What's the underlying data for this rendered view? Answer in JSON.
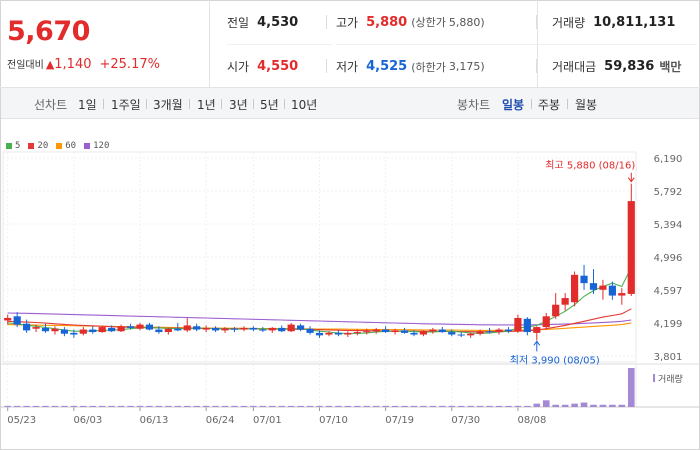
{
  "price": {
    "current": "5,670",
    "change_label": "전일대비",
    "change_triangle": "▲",
    "change_amount": "1,140",
    "change_percent": "+25.17%"
  },
  "stats": {
    "prev_close_label": "전일",
    "prev_close": "4,530",
    "high_label": "고가",
    "high": "5,880",
    "upper_limit_label": "(상한가",
    "upper_limit": "5,880)",
    "volume_label": "거래량",
    "volume": "10,811,131",
    "open_label": "시가",
    "open": "4,550",
    "low_label": "저가",
    "low": "4,525",
    "lower_limit_label": "(하한가",
    "lower_limit": "3,175)",
    "trade_value_label": "거래대금",
    "trade_value": "59,836",
    "trade_value_unit": "백만"
  },
  "period_bar": {
    "line_label": "선차트",
    "line_periods": [
      "1일",
      "1주일",
      "3개월",
      "1년",
      "3년",
      "5년",
      "10년"
    ],
    "candle_label": "봉차트",
    "candle_periods": [
      "일봉",
      "주봉",
      "월봉"
    ],
    "candle_selected": "일봉"
  },
  "colors": {
    "up": "#e22b2b",
    "down": "#1764d6",
    "ma5": "#4caf50",
    "ma20": "#e53935",
    "ma60": "#ff9800",
    "ma120": "#9c5fd0",
    "volume": "#a48ad4"
  },
  "chart_data": {
    "type": "candlestick",
    "legend": [
      "5",
      "20",
      "60",
      "120"
    ],
    "y_ticks": [
      "6,190",
      "5,792",
      "5,394",
      "4,996",
      "4,597",
      "4,199",
      "3,801"
    ],
    "ylim": [
      3801,
      6190
    ],
    "x_ticks": [
      "05/23",
      "06/03",
      "06/13",
      "06/24",
      "07/01",
      "07/10",
      "07/19",
      "07/30",
      "08/08"
    ],
    "high_annotation": "최고 5,880 (08/16)",
    "low_annotation": "최저 3,990 (08/05)",
    "volume_legend": "거래량",
    "candles": [
      {
        "o": 4230,
        "h": 4300,
        "l": 4180,
        "c": 4260
      },
      {
        "o": 4280,
        "h": 4330,
        "l": 4150,
        "c": 4180
      },
      {
        "o": 4190,
        "h": 4240,
        "l": 4080,
        "c": 4110
      },
      {
        "o": 4130,
        "h": 4180,
        "l": 4090,
        "c": 4150
      },
      {
        "o": 4140,
        "h": 4190,
        "l": 4080,
        "c": 4100
      },
      {
        "o": 4100,
        "h": 4160,
        "l": 4060,
        "c": 4130
      },
      {
        "o": 4120,
        "h": 4150,
        "l": 4040,
        "c": 4070
      },
      {
        "o": 4080,
        "h": 4120,
        "l": 4020,
        "c": 4060
      },
      {
        "o": 4070,
        "h": 4150,
        "l": 4050,
        "c": 4120
      },
      {
        "o": 4120,
        "h": 4160,
        "l": 4070,
        "c": 4090
      },
      {
        "o": 4090,
        "h": 4160,
        "l": 4080,
        "c": 4150
      },
      {
        "o": 4140,
        "h": 4170,
        "l": 4090,
        "c": 4100
      },
      {
        "o": 4100,
        "h": 4180,
        "l": 4090,
        "c": 4160
      },
      {
        "o": 4160,
        "h": 4190,
        "l": 4120,
        "c": 4140
      },
      {
        "o": 4130,
        "h": 4200,
        "l": 4110,
        "c": 4180
      },
      {
        "o": 4180,
        "h": 4200,
        "l": 4110,
        "c": 4120
      },
      {
        "o": 4120,
        "h": 4160,
        "l": 4070,
        "c": 4090
      },
      {
        "o": 4090,
        "h": 4140,
        "l": 4060,
        "c": 4130
      },
      {
        "o": 4130,
        "h": 4200,
        "l": 4100,
        "c": 4110
      },
      {
        "o": 4110,
        "h": 4260,
        "l": 4090,
        "c": 4170
      },
      {
        "o": 4160,
        "h": 4190,
        "l": 4100,
        "c": 4120
      },
      {
        "o": 4120,
        "h": 4170,
        "l": 4090,
        "c": 4140
      },
      {
        "o": 4140,
        "h": 4160,
        "l": 4090,
        "c": 4110
      },
      {
        "o": 4110,
        "h": 4150,
        "l": 4080,
        "c": 4130
      },
      {
        "o": 4130,
        "h": 4150,
        "l": 4090,
        "c": 4120
      },
      {
        "o": 4120,
        "h": 4160,
        "l": 4100,
        "c": 4140
      },
      {
        "o": 4140,
        "h": 4160,
        "l": 4100,
        "c": 4120
      },
      {
        "o": 4120,
        "h": 4150,
        "l": 4090,
        "c": 4110
      },
      {
        "o": 4110,
        "h": 4150,
        "l": 4080,
        "c": 4140
      },
      {
        "o": 4140,
        "h": 4170,
        "l": 4090,
        "c": 4100
      },
      {
        "o": 4100,
        "h": 4200,
        "l": 4090,
        "c": 4180
      },
      {
        "o": 4170,
        "h": 4190,
        "l": 4100,
        "c": 4120
      },
      {
        "o": 4130,
        "h": 4160,
        "l": 4060,
        "c": 4080
      },
      {
        "o": 4080,
        "h": 4110,
        "l": 4020,
        "c": 4050
      },
      {
        "o": 4060,
        "h": 4100,
        "l": 4040,
        "c": 4080
      },
      {
        "o": 4080,
        "h": 4110,
        "l": 4040,
        "c": 4060
      },
      {
        "o": 4060,
        "h": 4100,
        "l": 4030,
        "c": 4080
      },
      {
        "o": 4080,
        "h": 4120,
        "l": 4050,
        "c": 4090
      },
      {
        "o": 4090,
        "h": 4130,
        "l": 4060,
        "c": 4100
      },
      {
        "o": 4100,
        "h": 4140,
        "l": 4070,
        "c": 4120
      },
      {
        "o": 4120,
        "h": 4160,
        "l": 4080,
        "c": 4090
      },
      {
        "o": 4090,
        "h": 4130,
        "l": 4060,
        "c": 4110
      },
      {
        "o": 4110,
        "h": 4140,
        "l": 4070,
        "c": 4080
      },
      {
        "o": 4080,
        "h": 4110,
        "l": 4040,
        "c": 4060
      },
      {
        "o": 4060,
        "h": 4110,
        "l": 4040,
        "c": 4100
      },
      {
        "o": 4100,
        "h": 4140,
        "l": 4070,
        "c": 4120
      },
      {
        "o": 4120,
        "h": 4150,
        "l": 4080,
        "c": 4090
      },
      {
        "o": 4090,
        "h": 4120,
        "l": 4040,
        "c": 4060
      },
      {
        "o": 4060,
        "h": 4090,
        "l": 4030,
        "c": 4050
      },
      {
        "o": 4050,
        "h": 4080,
        "l": 4020,
        "c": 4070
      },
      {
        "o": 4070,
        "h": 4120,
        "l": 4050,
        "c": 4100
      },
      {
        "o": 4100,
        "h": 4140,
        "l": 4070,
        "c": 4090
      },
      {
        "o": 4090,
        "h": 4140,
        "l": 4060,
        "c": 4120
      },
      {
        "o": 4120,
        "h": 4150,
        "l": 4080,
        "c": 4100
      },
      {
        "o": 4100,
        "h": 4300,
        "l": 4080,
        "c": 4260
      },
      {
        "o": 4250,
        "h": 4270,
        "l": 4050,
        "c": 4090
      },
      {
        "o": 4080,
        "h": 4160,
        "l": 3990,
        "c": 4150
      },
      {
        "o": 4150,
        "h": 4320,
        "l": 4120,
        "c": 4280
      },
      {
        "o": 4280,
        "h": 4560,
        "l": 4250,
        "c": 4420
      },
      {
        "o": 4420,
        "h": 4560,
        "l": 4350,
        "c": 4500
      },
      {
        "o": 4450,
        "h": 4820,
        "l": 4400,
        "c": 4780
      },
      {
        "o": 4770,
        "h": 4900,
        "l": 4600,
        "c": 4680
      },
      {
        "o": 4680,
        "h": 4850,
        "l": 4550,
        "c": 4600
      },
      {
        "o": 4600,
        "h": 4720,
        "l": 4480,
        "c": 4650
      },
      {
        "o": 4650,
        "h": 4700,
        "l": 4480,
        "c": 4530
      },
      {
        "o": 4530,
        "h": 4620,
        "l": 4420,
        "c": 4560
      },
      {
        "o": 4550,
        "h": 5880,
        "l": 4525,
        "c": 5670
      }
    ],
    "ma5": [
      4200,
      4190,
      4170,
      4160,
      4145,
      4130,
      4115,
      4100,
      4100,
      4105,
      4110,
      4115,
      4120,
      4130,
      4140,
      4145,
      4140,
      4135,
      4130,
      4130,
      4135,
      4135,
      4130,
      4128,
      4125,
      4128,
      4130,
      4128,
      4126,
      4125,
      4130,
      4128,
      4115,
      4100,
      4090,
      4078,
      4070,
      4072,
      4080,
      4090,
      4098,
      4100,
      4100,
      4096,
      4090,
      4092,
      4098,
      4100,
      4090,
      4078,
      4074,
      4080,
      4090,
      4100,
      4140,
      4150,
      4170,
      4220,
      4280,
      4340,
      4420,
      4520,
      4590,
      4640,
      4680,
      4640,
      4870
    ],
    "ma20": [
      4220,
      4215,
      4210,
      4205,
      4198,
      4190,
      4182,
      4175,
      4170,
      4165,
      4160,
      4155,
      4150,
      4148,
      4145,
      4143,
      4140,
      4138,
      4136,
      4135,
      4134,
      4133,
      4132,
      4131,
      4130,
      4129,
      4128,
      4127,
      4126,
      4125,
      4124,
      4123,
      4120,
      4118,
      4115,
      4112,
      4110,
      4108,
      4106,
      4104,
      4103,
      4102,
      4101,
      4100,
      4099,
      4098,
      4097,
      4096,
      4095,
      4094,
      4093,
      4094,
      4095,
      4097,
      4100,
      4105,
      4115,
      4130,
      4150,
      4170,
      4195,
      4220,
      4245,
      4270,
      4290,
      4310,
      4370
    ],
    "ma60": [
      4180,
      4178,
      4176,
      4174,
      4172,
      4170,
      4168,
      4166,
      4164,
      4162,
      4160,
      4158,
      4156,
      4154,
      4152,
      4150,
      4148,
      4146,
      4144,
      4142,
      4140,
      4139,
      4138,
      4137,
      4136,
      4135,
      4134,
      4133,
      4132,
      4131,
      4130,
      4129,
      4128,
      4127,
      4126,
      4125,
      4124,
      4123,
      4122,
      4121,
      4120,
      4119,
      4118,
      4117,
      4116,
      4115,
      4114,
      4113,
      4112,
      4111,
      4110,
      4110,
      4111,
      4112,
      4113,
      4115,
      4118,
      4122,
      4128,
      4135,
      4142,
      4150,
      4158,
      4165,
      4172,
      4180,
      4200
    ],
    "ma120": [
      4320,
      4318,
      4316,
      4313,
      4310,
      4307,
      4304,
      4301,
      4298,
      4295,
      4292,
      4289,
      4286,
      4283,
      4280,
      4277,
      4274,
      4271,
      4268,
      4265,
      4262,
      4259,
      4256,
      4253,
      4250,
      4247,
      4244,
      4241,
      4238,
      4235,
      4232,
      4229,
      4226,
      4223,
      4220,
      4217,
      4214,
      4211,
      4208,
      4205,
      4202,
      4199,
      4196,
      4193,
      4190,
      4188,
      4186,
      4184,
      4182,
      4180,
      4178,
      4177,
      4176,
      4176,
      4176,
      4177,
      4178,
      4180,
      4183,
      4186,
      4190,
      4195,
      4200,
      4206,
      4212,
      4220,
      4235
    ],
    "volume": [
      1,
      1,
      1,
      1,
      1,
      1,
      1,
      1,
      1,
      1,
      1,
      1,
      1,
      1,
      1,
      1,
      1,
      1,
      1,
      1,
      1,
      1,
      1,
      1,
      1,
      1,
      1,
      1,
      1,
      1,
      1,
      1,
      1,
      1,
      1,
      1,
      1,
      1,
      1,
      1,
      1,
      1,
      1,
      1,
      1,
      1,
      1,
      1,
      1,
      1,
      1,
      1,
      1,
      1,
      1,
      1,
      3,
      6,
      2,
      2,
      3,
      4,
      2,
      2,
      2,
      2,
      35
    ]
  }
}
